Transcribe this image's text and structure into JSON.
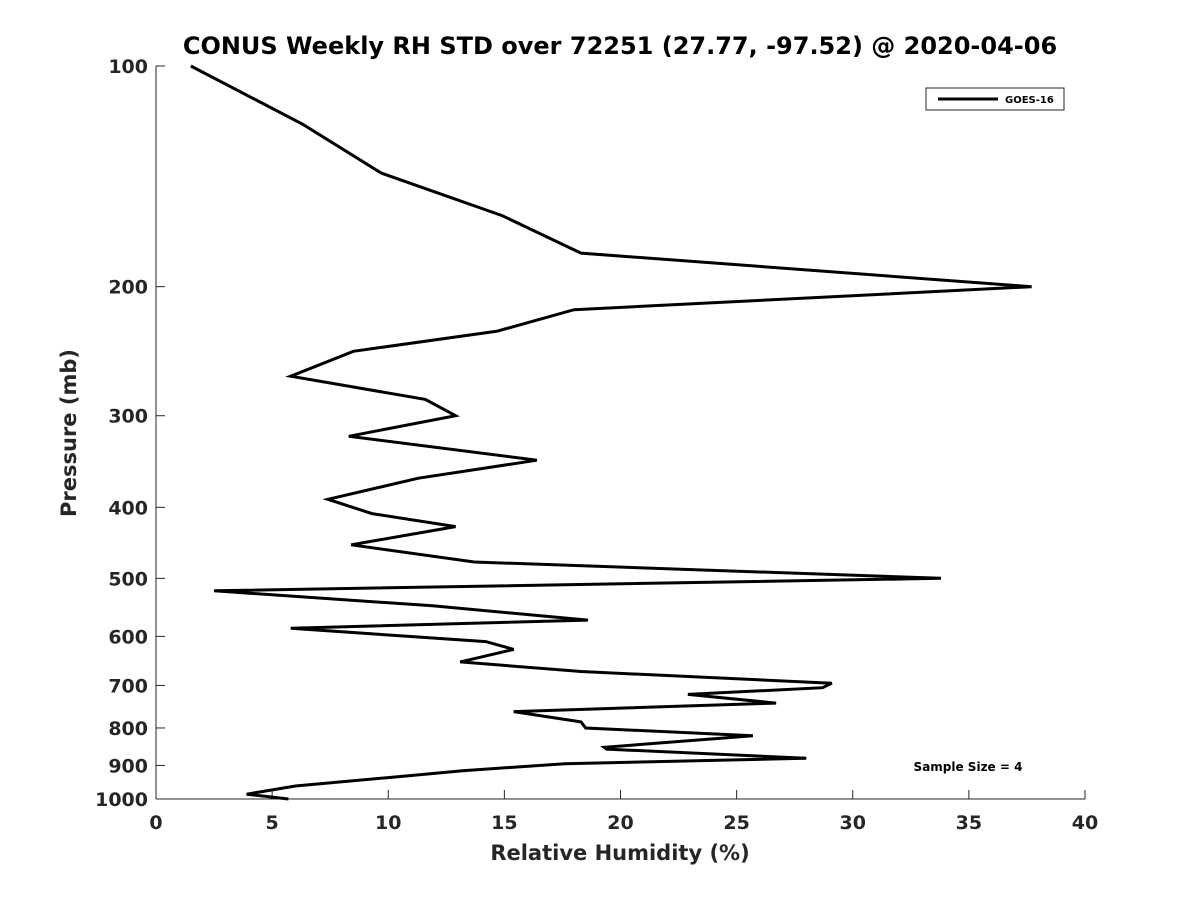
{
  "chart_data": {
    "type": "line",
    "title": "CONUS Weekly RH STD over 72251 (27.77, -97.52) @ 2020-04-06",
    "xlabel": "Relative Humidity (%)",
    "ylabel": "Pressure (mb)",
    "xlim": [
      0,
      40
    ],
    "ylim": [
      100,
      1000
    ],
    "yscale": "log",
    "y_reversed": true,
    "grid": false,
    "xticks": [
      0,
      5,
      10,
      15,
      20,
      25,
      30,
      35,
      40
    ],
    "yticks": [
      100,
      200,
      300,
      400,
      500,
      600,
      700,
      800,
      900,
      1000
    ],
    "legend": {
      "position": "top-right",
      "entries": [
        "GOES-16"
      ]
    },
    "annotation": "Sample Size = 4",
    "series": [
      {
        "name": "GOES-16",
        "color": "#000000",
        "x": [
          1.5,
          6.3,
          9.7,
          14.9,
          18.3,
          37.7,
          18.0,
          14.7,
          8.5,
          5.8,
          11.6,
          12.9,
          8.3,
          16.4,
          11.3,
          7.4,
          9.3,
          12.9,
          8.4,
          13.7,
          33.8,
          2.5,
          11.9,
          18.6,
          5.8,
          14.2,
          15.4,
          13.1,
          18.3,
          29.1,
          28.7,
          22.9,
          26.7,
          15.4,
          18.3,
          18.5,
          25.7,
          19.3,
          19.4,
          28.0,
          17.6,
          13.2,
          10.0,
          6.0,
          3.9,
          5.7
        ],
        "y": [
          100,
          120,
          140,
          160,
          180,
          200,
          215,
          230,
          245,
          265,
          285,
          300,
          320,
          345,
          365,
          390,
          408,
          425,
          450,
          475,
          500,
          520,
          545,
          570,
          585,
          610,
          625,
          650,
          670,
          695,
          705,
          720,
          740,
          760,
          785,
          800,
          820,
          850,
          855,
          880,
          895,
          915,
          935,
          960,
          985,
          1000
        ]
      }
    ]
  }
}
